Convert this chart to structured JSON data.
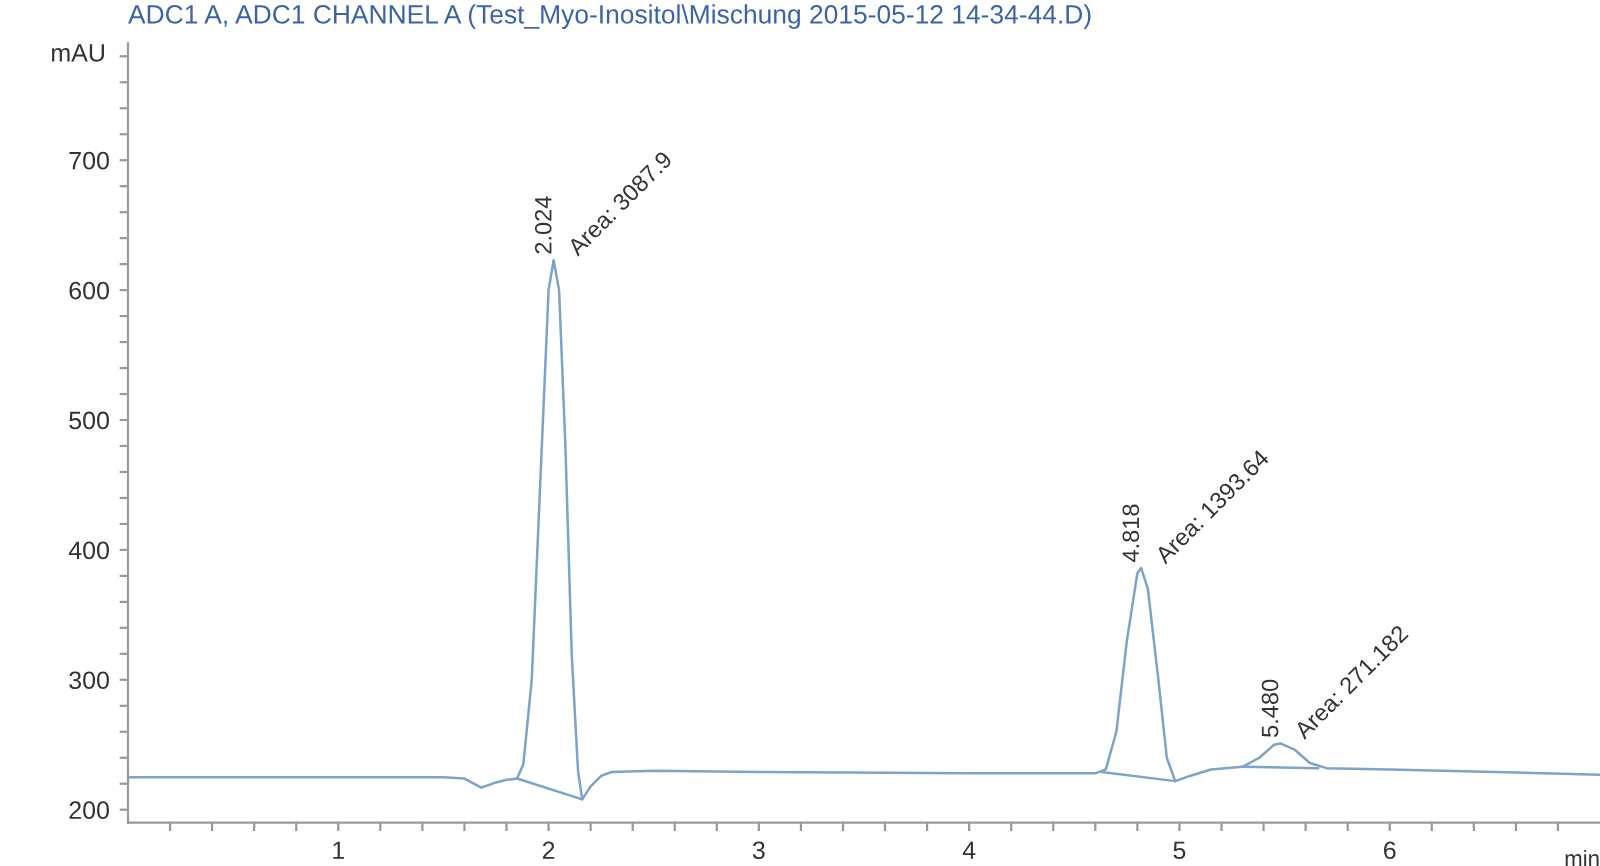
{
  "chart_data": {
    "type": "line",
    "title": "ADC1 A, ADC1 CHANNEL A (Test_Myo-Inositol\\Mischung 2015-05-12 14-34-44.D)",
    "xlabel": "min",
    "ylabel": "mAU",
    "xlim": [
      0,
      7
    ],
    "ylim": [
      190,
      790
    ],
    "xticks": [
      {
        "value": 0.2,
        "label": null
      },
      {
        "value": 0.4,
        "label": null
      },
      {
        "value": 0.6,
        "label": null
      },
      {
        "value": 0.8,
        "label": null
      },
      1,
      {
        "value": 1.2,
        "label": null
      },
      {
        "value": 1.4,
        "label": null
      },
      {
        "value": 1.6,
        "label": null
      },
      {
        "value": 1.8,
        "label": null
      },
      2,
      {
        "value": 2.2,
        "label": null
      },
      {
        "value": 2.4,
        "label": null
      },
      {
        "value": 2.6,
        "label": null
      },
      {
        "value": 2.8,
        "label": null
      },
      3,
      {
        "value": 3.2,
        "label": null
      },
      {
        "value": 3.4,
        "label": null
      },
      {
        "value": 3.6,
        "label": null
      },
      {
        "value": 3.8,
        "label": null
      },
      4,
      {
        "value": 4.2,
        "label": null
      },
      {
        "value": 4.4,
        "label": null
      },
      {
        "value": 4.6,
        "label": null
      },
      {
        "value": 4.8,
        "label": null
      },
      5,
      {
        "value": 5.2,
        "label": null
      },
      {
        "value": 5.4,
        "label": null
      },
      {
        "value": 5.6,
        "label": null
      },
      {
        "value": 5.8,
        "label": null
      },
      6,
      {
        "value": 6.2,
        "label": null
      },
      {
        "value": 6.4,
        "label": null
      },
      {
        "value": 6.6,
        "label": null
      },
      {
        "value": 6.8,
        "label": null
      }
    ],
    "yticks": [
      200,
      {
        "value": 220,
        "label": null
      },
      {
        "value": 240,
        "label": null
      },
      {
        "value": 260,
        "label": null
      },
      {
        "value": 280,
        "label": null
      },
      300,
      {
        "value": 320,
        "label": null
      },
      {
        "value": 340,
        "label": null
      },
      {
        "value": 360,
        "label": null
      },
      {
        "value": 380,
        "label": null
      },
      400,
      {
        "value": 420,
        "label": null
      },
      {
        "value": 440,
        "label": null
      },
      {
        "value": 460,
        "label": null
      },
      {
        "value": 480,
        "label": null
      },
      500,
      {
        "value": 520,
        "label": null
      },
      {
        "value": 540,
        "label": null
      },
      {
        "value": 560,
        "label": null
      },
      {
        "value": 580,
        "label": null
      },
      600,
      {
        "value": 620,
        "label": null
      },
      {
        "value": 640,
        "label": null
      },
      {
        "value": 660,
        "label": null
      },
      {
        "value": 680,
        "label": null
      },
      700,
      {
        "value": 720,
        "label": null
      },
      {
        "value": 740,
        "label": null
      },
      {
        "value": 760,
        "label": null
      },
      {
        "value": 780,
        "label": null
      }
    ],
    "grid": false,
    "legend": false,
    "marker": "none",
    "line_style": "solid",
    "series": [
      {
        "color": "#7ea3c9",
        "x": [
          0,
          1.5,
          1.6,
          1.68,
          1.75,
          1.8,
          1.85,
          1.88,
          1.92,
          1.96,
          2.0,
          2.024,
          2.05,
          2.08,
          2.11,
          2.14,
          2.16,
          2.2,
          2.25,
          2.3,
          2.5,
          3,
          4,
          4.6,
          4.65,
          4.7,
          4.75,
          4.8,
          4.818,
          4.85,
          4.9,
          4.94,
          4.98,
          5.05,
          5.15,
          5.3,
          5.38,
          5.45,
          5.48,
          5.55,
          5.62,
          5.7,
          6,
          6.5,
          7
        ],
        "values": [
          225,
          225,
          224,
          217,
          221,
          223,
          224,
          235,
          300,
          450,
          600,
          623,
          600,
          480,
          320,
          230,
          208,
          218,
          226,
          229,
          230,
          229,
          228,
          228,
          231,
          260,
          330,
          382,
          386,
          370,
          300,
          240,
          222,
          226,
          231,
          233,
          240,
          250,
          251,
          246,
          236,
          232,
          231,
          229,
          227
        ]
      },
      {
        "color": "#7ea3c9",
        "x": [
          1.85,
          2.16
        ],
        "values": [
          224,
          208
        ]
      },
      {
        "color": "#7ea3c9",
        "x": [
          4.63,
          4.98
        ],
        "values": [
          229,
          222
        ]
      },
      {
        "color": "#7ea3c9",
        "x": [
          5.3,
          5.66
        ],
        "values": [
          233,
          232
        ]
      }
    ],
    "annotations": [
      {
        "text": "2.024",
        "x": 2.024,
        "y": 623
      },
      {
        "text": "Area: 3087.9",
        "x": 2.024,
        "y": 623
      },
      {
        "text": "4.818",
        "x": 4.818,
        "y": 386
      },
      {
        "text": "Area: 1393.64",
        "x": 4.818,
        "y": 386
      },
      {
        "text": "5.480",
        "x": 5.48,
        "y": 251
      },
      {
        "text": "Area: 271.182",
        "x": 5.48,
        "y": 251
      }
    ]
  }
}
